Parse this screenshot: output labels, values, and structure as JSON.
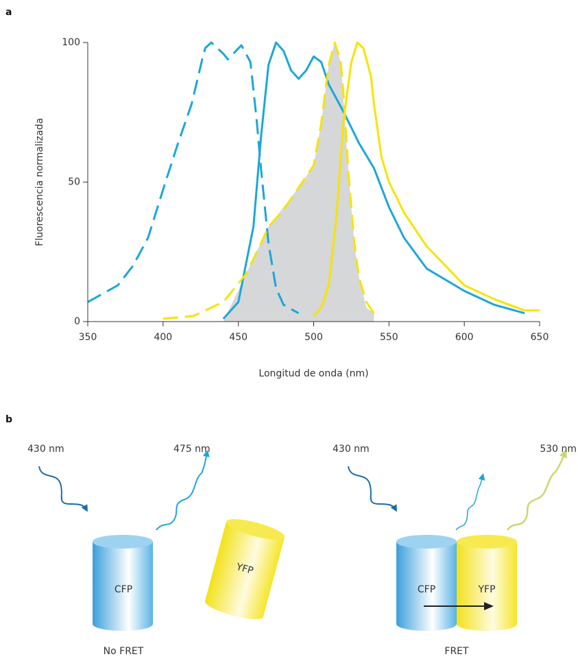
{
  "labels": {
    "a": "a",
    "b": "b"
  },
  "chart_data": {
    "type": "line",
    "xlabel": "Longitud de onda (nm)",
    "ylabel": "Fluorescencia normalizada",
    "xlim": [
      350,
      650
    ],
    "ylim": [
      0,
      100
    ],
    "xticks": [
      350,
      400,
      450,
      500,
      550,
      600,
      650
    ],
    "yticks": [
      0,
      50,
      100
    ],
    "grid": false,
    "series": [
      {
        "color": "#d6d7d9",
        "style": "area",
        "x": [
          440,
          455,
          470,
          490,
          500,
          505,
          510,
          514,
          518,
          523,
          527,
          530,
          535,
          540,
          540
        ],
        "values": [
          0,
          17,
          34,
          48,
          56,
          71,
          92,
          100,
          93,
          54,
          28,
          16,
          5,
          3,
          0
        ]
      },
      {
        "color": "#1ba6d9",
        "style": "dashed",
        "x": [
          350,
          370,
          380,
          390,
          401,
          410,
          419,
          426,
          428,
          432,
          440,
          443,
          452,
          458,
          462,
          465,
          470,
          475,
          480,
          490
        ],
        "values": [
          7,
          13,
          20,
          30,
          49,
          64,
          78,
          94,
          98,
          100,
          96,
          94,
          99,
          93,
          73,
          55,
          28,
          12,
          6,
          3
        ]
      },
      {
        "color": "#1ba6d9",
        "style": "solid",
        "x": [
          440,
          450,
          460,
          465,
          470,
          475,
          480,
          485,
          490,
          495,
          500,
          505,
          510,
          520,
          530,
          540,
          545,
          550,
          560,
          575,
          600,
          620,
          640
        ],
        "values": [
          1,
          7,
          34,
          66,
          92,
          100,
          97,
          90,
          87,
          90,
          95,
          93,
          85,
          75,
          64,
          55,
          48,
          41,
          30,
          19,
          11,
          6,
          3
        ]
      },
      {
        "color": "#f5e400",
        "style": "dashed",
        "x": [
          400,
          420,
          440,
          455,
          465,
          470,
          480,
          490,
          500,
          505,
          510,
          514,
          518,
          520,
          523,
          527,
          530,
          535,
          540
        ],
        "values": [
          1,
          2,
          7,
          17,
          28,
          34,
          40,
          48,
          56,
          71,
          92,
          100,
          93,
          80,
          54,
          28,
          16,
          7,
          3
        ]
      },
      {
        "color": "#f5e400",
        "style": "solid",
        "x": [
          500,
          505,
          510,
          515,
          520,
          525,
          529,
          533,
          538,
          540,
          545,
          550,
          560,
          575,
          600,
          620,
          640,
          650
        ],
        "values": [
          2,
          5,
          13,
          37,
          73,
          93,
          100,
          98,
          88,
          78,
          59,
          50,
          39,
          27,
          13,
          8,
          4,
          4
        ]
      }
    ]
  },
  "diagram": {
    "left": {
      "excitation": "430 nm",
      "emission": "475 nm",
      "donor": "CFP",
      "acceptor": "YFP",
      "caption": "No FRET"
    },
    "right": {
      "excitation": "430 nm",
      "emission": "530 nm",
      "donor": "CFP",
      "acceptor": "YFP",
      "caption": "FRET"
    }
  }
}
